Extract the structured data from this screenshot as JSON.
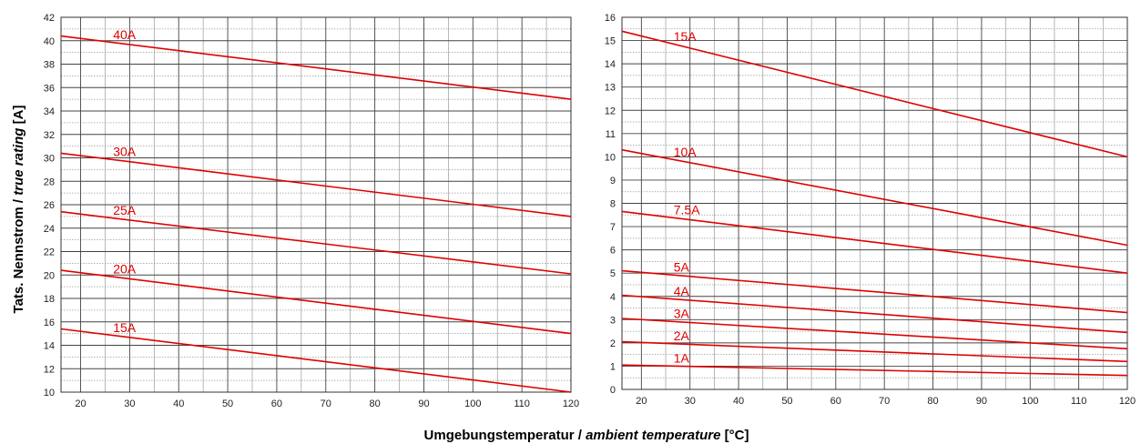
{
  "figure": {
    "ylabel_main": "Tats. Nennstrom / ",
    "ylabel_italic": "true rating",
    "ylabel_unit": " [A]",
    "xlabel_main": "Umgebungstemperatur / ",
    "xlabel_italic": "ambient temperature",
    "xlabel_unit": " [°C]",
    "line_color": "#e00000",
    "grid_color": "#444444"
  },
  "chart_data": [
    {
      "type": "line",
      "xlim": [
        16,
        120
      ],
      "ylim": [
        10,
        42
      ],
      "x_ticks": [
        20,
        30,
        40,
        50,
        60,
        70,
        80,
        90,
        100,
        110,
        120
      ],
      "y_ticks": [
        10,
        12,
        14,
        16,
        18,
        20,
        22,
        24,
        26,
        28,
        30,
        32,
        34,
        36,
        38,
        40,
        42
      ],
      "grid": true,
      "series": [
        {
          "name": "40A",
          "x": [
            16,
            120
          ],
          "y": [
            40.4,
            35.0
          ]
        },
        {
          "name": "30A",
          "x": [
            16,
            120
          ],
          "y": [
            30.4,
            25.0
          ]
        },
        {
          "name": "25A",
          "x": [
            16,
            120
          ],
          "y": [
            25.4,
            20.1
          ]
        },
        {
          "name": "20A",
          "x": [
            16,
            120
          ],
          "y": [
            20.4,
            15.0
          ]
        },
        {
          "name": "15A",
          "x": [
            16,
            120
          ],
          "y": [
            15.4,
            10.0
          ]
        }
      ]
    },
    {
      "type": "line",
      "xlim": [
        16,
        120
      ],
      "ylim": [
        0,
        16
      ],
      "x_ticks": [
        20,
        30,
        40,
        50,
        60,
        70,
        80,
        90,
        100,
        110,
        120
      ],
      "y_ticks": [
        0,
        1,
        2,
        3,
        4,
        5,
        6,
        7,
        8,
        9,
        10,
        11,
        12,
        13,
        14,
        15,
        16
      ],
      "grid": true,
      "series": [
        {
          "name": "15A",
          "x": [
            16,
            120
          ],
          "y": [
            15.4,
            10.0
          ]
        },
        {
          "name": "10A",
          "x": [
            16,
            120
          ],
          "y": [
            10.3,
            6.2
          ]
        },
        {
          "name": "7.5A",
          "x": [
            16,
            120
          ],
          "y": [
            7.65,
            5.0
          ]
        },
        {
          "name": "5A",
          "x": [
            16,
            120
          ],
          "y": [
            5.1,
            3.3
          ]
        },
        {
          "name": "4A",
          "x": [
            16,
            120
          ],
          "y": [
            4.05,
            2.45
          ]
        },
        {
          "name": "3A",
          "x": [
            16,
            120
          ],
          "y": [
            3.05,
            1.75
          ]
        },
        {
          "name": "2A",
          "x": [
            16,
            120
          ],
          "y": [
            2.05,
            1.2
          ]
        },
        {
          "name": "1A",
          "x": [
            16,
            120
          ],
          "y": [
            1.05,
            0.6
          ]
        }
      ]
    }
  ]
}
